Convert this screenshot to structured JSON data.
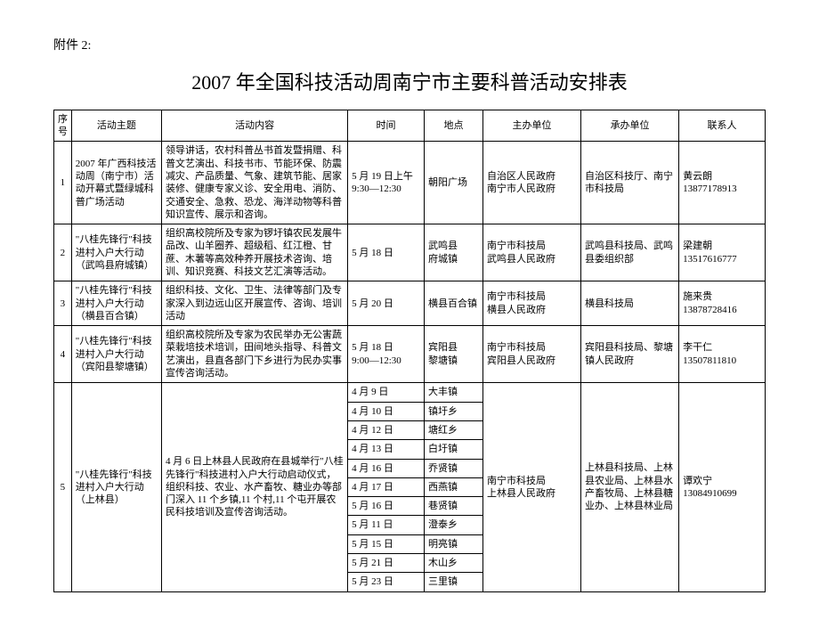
{
  "attachment_label": "附件 2:",
  "title": "2007 年全国科技活动周南宁市主要科普活动安排表",
  "columns": [
    "序号",
    "活动主题",
    "活动内容",
    "时间",
    "地点",
    "主办单位",
    "承办单位",
    "联系人"
  ],
  "rows": [
    {
      "seq": "1",
      "theme": "2007 年广西科技活动周（南宁市）活动开幕式暨绿城科普广场活动",
      "content": "领导讲话，农村科普丛书首发暨捐赠、科普文艺演出、科技书市、节能环保、防震减灾、产品质量、气象、建筑节能、居家装修、健康专家义诊、安全用电、消防、交通安全、急救、恐龙、海洋动物等科普知识宣传、展示和咨询。",
      "time": "5 月 19 日上午\n9:30—12:30",
      "place": "朝阳广场",
      "host": "自治区人民政府\n南宁市人民政府",
      "undertake": "自治区科技厅、南宁市科技局",
      "contact": "黄云朗\n13877178913"
    },
    {
      "seq": "2",
      "theme": "\"八桂先锋行\"科技进村入户大行动（武鸣县府城镇）",
      "content": "组织高校院所及专家为锣圩镇农民发展牛品改、山羊圈养、超级稻、红江橙、甘蔗、木薯等高效种养开展技术咨询、培训、知识竞赛、科技文艺汇演等活动。",
      "time": "5 月 18 日",
      "place": "武鸣县\n府城镇",
      "host": "南宁市科技局\n武鸣县人民政府",
      "undertake": "武鸣县科技局、武鸣县委组织部",
      "contact": "梁建朝\n13517616777"
    },
    {
      "seq": "3",
      "theme": "\"八桂先锋行\"科技进村入户大行动（横县百合镇）",
      "content": "组织科技、文化、卫生、法律等部门及专家深入到边远山区开展宣传、咨询、培训活动",
      "time": "5 月 20 日",
      "place": "横县百合镇",
      "host": "南宁市科技局\n横县人民政府",
      "undertake": "横县科技局",
      "contact": "施来贵\n13878728416"
    },
    {
      "seq": "4",
      "theme": "\"八桂先锋行\"科技进村入户大行动（宾阳县黎塘镇）",
      "content": "组织高校院所及专家为农民举办无公害蔬菜栽培技术培训，田间地头指导、科普文艺演出，县直各部门下乡进行为民办实事宣传咨询活动。",
      "time": "5 月 18 日\n9:00—12:30",
      "place": "宾阳县\n黎塘镇",
      "host": "南宁市科技局\n宾阳县人民政府",
      "undertake": "宾阳县科技局、黎塘镇人民政府",
      "contact": "李干仁\n13507811810"
    },
    {
      "seq": "5",
      "theme": "\"八桂先锋行\"科技进村入户大行动（上林县）",
      "content": "4 月 6 日上林县人民政府在县城举行\"八桂先锋行\"科技进村入户大行动启动仪式，组织科技、农业、水产畜牧、糖业办等部门深入 11 个乡镇,11 个村,11 个屯开展农民科技培训及宣传咨询活动。",
      "sub_times": [
        "4 月 9 日",
        "4 月 10 日",
        "4 月 12 日",
        "4 月 13 日",
        "4 月 16 日",
        "4 月 17 日",
        "5 月 16 日",
        "5 月 11 日",
        "5 月 15 日",
        "5 月 21 日",
        "5 月 23 日"
      ],
      "sub_places": [
        "大丰镇",
        "镇圩乡",
        "塘红乡",
        "白圩镇",
        "乔贤镇",
        "西燕镇",
        "巷贤镇",
        "澄泰乡",
        "明亮镇",
        "木山乡",
        "三里镇"
      ],
      "host": "南宁市科技局\n上林县人民政府",
      "undertake": "上林县科技局、上林县农业局、上林县水产畜牧局、上林县糖业办、上林县林业局",
      "contact": "谭欢宁\n13084910699"
    }
  ]
}
